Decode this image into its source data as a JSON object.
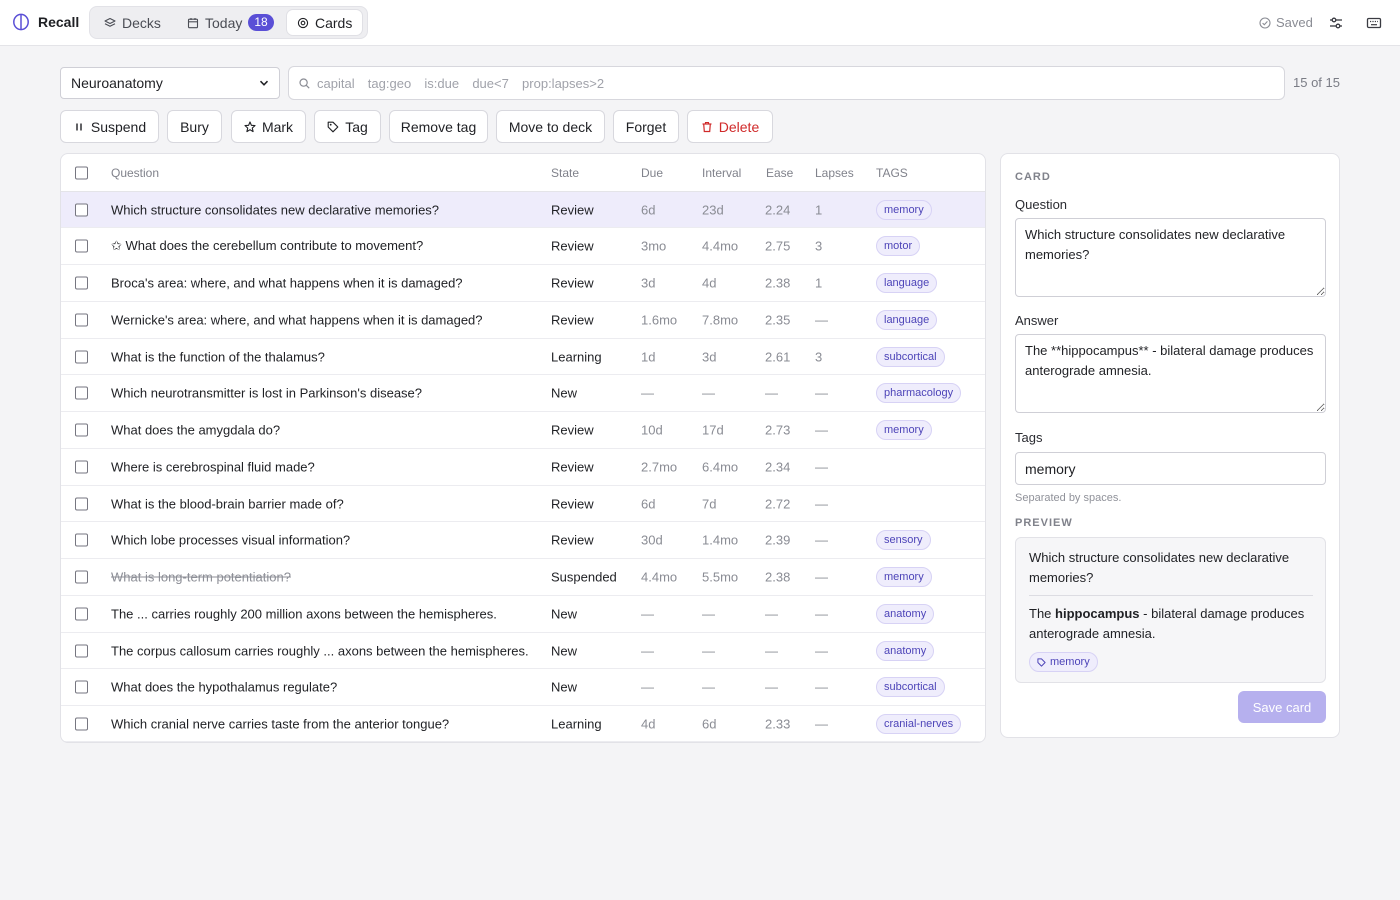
{
  "app": {
    "name": "Recall"
  },
  "nav": {
    "tabs": [
      {
        "label": "Decks",
        "icon": "layers-icon"
      },
      {
        "label": "Today",
        "icon": "calendar-icon",
        "badge": "18"
      },
      {
        "label": "Cards",
        "icon": "target-icon",
        "active": true
      }
    ]
  },
  "header": {
    "status": "Saved"
  },
  "filters": {
    "deck": "Neuroanatomy",
    "search_placeholder": "capital  tag:geo  is:due  due<7  prop:lapses>2",
    "search_value": "",
    "count": "15 of 15"
  },
  "toolbar": {
    "buttons": [
      {
        "label": "Suspend",
        "icon": "pause-icon"
      },
      {
        "label": "Bury",
        "icon": ""
      },
      {
        "label": "Mark",
        "icon": "star-icon"
      },
      {
        "label": "Tag",
        "icon": "tag-icon"
      },
      {
        "label": "Remove tag",
        "icon": ""
      },
      {
        "label": "Move to deck",
        "icon": ""
      },
      {
        "label": "Forget",
        "icon": ""
      },
      {
        "label": "Delete",
        "icon": "trash-icon"
      }
    ]
  },
  "table": {
    "columns": [
      "Question",
      "State",
      "Due",
      "Interval",
      "Ease",
      "Lapses",
      "TAGS"
    ],
    "rows": [
      {
        "question": "Which structure consolidates new declarative memories?",
        "state": "Review",
        "due": "6d",
        "interval": "23d",
        "ease": "2.24",
        "lapses": "1",
        "tag": "memory",
        "selected": true
      },
      {
        "question": "✩ What does the cerebellum contribute to movement?",
        "state": "Review",
        "due": "3mo",
        "interval": "4.4mo",
        "ease": "2.75",
        "lapses": "3",
        "tag": "motor"
      },
      {
        "question": "Broca's area: where, and what happens when it is damaged?",
        "state": "Review",
        "due": "3d",
        "interval": "4d",
        "ease": "2.38",
        "lapses": "1",
        "tag": "language"
      },
      {
        "question": "Wernicke's area: where, and what happens when it is damaged?",
        "state": "Review",
        "due": "1.6mo",
        "interval": "7.8mo",
        "ease": "2.35",
        "lapses": "—",
        "tag": "language"
      },
      {
        "question": "What is the function of the thalamus?",
        "state": "Learning",
        "due": "1d",
        "interval": "3d",
        "ease": "2.61",
        "lapses": "3",
        "tag": "subcortical"
      },
      {
        "question": "Which neurotransmitter is lost in Parkinson's disease?",
        "state": "New",
        "due": "—",
        "interval": "—",
        "ease": "—",
        "lapses": "—",
        "tag": "pharmacology"
      },
      {
        "question": "What does the amygdala do?",
        "state": "Review",
        "due": "10d",
        "interval": "17d",
        "ease": "2.73",
        "lapses": "—",
        "tag": "memory"
      },
      {
        "question": "Where is cerebrospinal fluid made?",
        "state": "Review",
        "due": "2.7mo",
        "interval": "6.4mo",
        "ease": "2.34",
        "lapses": "—",
        "tag": ""
      },
      {
        "question": "What is the blood-brain barrier made of?",
        "state": "Review",
        "due": "6d",
        "interval": "7d",
        "ease": "2.72",
        "lapses": "—",
        "tag": ""
      },
      {
        "question": "Which lobe processes visual information?",
        "state": "Review",
        "due": "30d",
        "interval": "1.4mo",
        "ease": "2.39",
        "lapses": "—",
        "tag": "sensory"
      },
      {
        "question": "What is long-term potentiation?",
        "state": "Suspended",
        "due": "4.4mo",
        "interval": "5.5mo",
        "ease": "2.38",
        "lapses": "—",
        "tag": "memory",
        "suspended": true
      },
      {
        "question": "The ... carries roughly 200 million axons between the hemispheres.",
        "state": "New",
        "due": "—",
        "interval": "—",
        "ease": "—",
        "lapses": "—",
        "tag": "anatomy"
      },
      {
        "question": "The corpus callosum carries roughly ... axons between the hemispheres.",
        "state": "New",
        "due": "—",
        "interval": "—",
        "ease": "—",
        "lapses": "—",
        "tag": "anatomy"
      },
      {
        "question": "What does the hypothalamus regulate?",
        "state": "New",
        "due": "—",
        "interval": "—",
        "ease": "—",
        "lapses": "—",
        "tag": "subcortical"
      },
      {
        "question": "Which cranial nerve carries taste from the anterior tongue?",
        "state": "Learning",
        "due": "4d",
        "interval": "6d",
        "ease": "2.33",
        "lapses": "—",
        "tag": "cranial-nerves"
      }
    ]
  },
  "card": {
    "section_label": "CARD",
    "question_label": "Question",
    "question": "Which structure consolidates new declarative memories?",
    "answer_label": "Answer",
    "answer": "The **hippocampus** - bilateral damage produces anterograde amnesia.",
    "tags_label": "Tags",
    "tags": "memory",
    "tags_hint": "Separated by spaces.",
    "preview_label": "PREVIEW",
    "preview": {
      "question": "Which structure consolidates new declarative memories?",
      "answer_prefix": "The ",
      "answer_bold": "hippocampus",
      "answer_suffix": " - bilateral damage produces anterograde amnesia.",
      "tag": "memory"
    },
    "save_label": "Save card"
  },
  "colors": {
    "accent": "#5a4fd6",
    "selected_row": "#eeecfb",
    "danger": "#d02a2a",
    "save_disabled": "#b6b0ee"
  }
}
